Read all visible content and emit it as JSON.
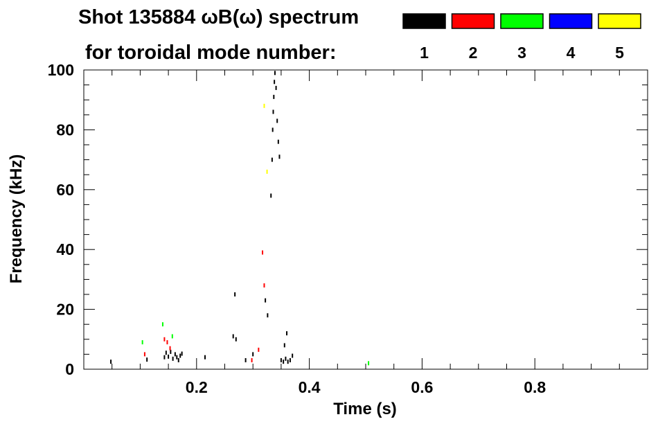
{
  "chart_data": {
    "type": "scatter",
    "title_line1": "Shot 135884 ωB(ω) spectrum",
    "title_line2": "for toroidal mode number:",
    "xlabel": "Time (s)",
    "ylabel": "Frequency (kHz)",
    "xlim": [
      0.0,
      1.0
    ],
    "ylim": [
      0,
      100
    ],
    "xticks": [
      0.2,
      0.4,
      0.6,
      0.8
    ],
    "xtick_labels": [
      "0.2",
      "0.4",
      "0.6",
      "0.8"
    ],
    "yticks": [
      0,
      20,
      40,
      60,
      80,
      100
    ],
    "ytick_labels": [
      "0",
      "20",
      "40",
      "60",
      "80",
      "100"
    ],
    "grid": false,
    "legend_placement": "top-right",
    "legend": [
      {
        "label": "1",
        "color": "#000000"
      },
      {
        "label": "2",
        "color": "#ff0000"
      },
      {
        "label": "3",
        "color": "#00ff00"
      },
      {
        "label": "4",
        "color": "#0000ff"
      },
      {
        "label": "5",
        "color": "#ffff00"
      }
    ],
    "series": [
      {
        "mode": "1",
        "color": "#000000",
        "points": [
          [
            0.048,
            2.5
          ],
          [
            0.112,
            3.2
          ],
          [
            0.143,
            4.0
          ],
          [
            0.146,
            5.5
          ],
          [
            0.15,
            4.2
          ],
          [
            0.154,
            5.8
          ],
          [
            0.158,
            3.5
          ],
          [
            0.162,
            5.0
          ],
          [
            0.165,
            4.0
          ],
          [
            0.168,
            3.0
          ],
          [
            0.171,
            4.5
          ],
          [
            0.174,
            5.2
          ],
          [
            0.215,
            4.0
          ],
          [
            0.265,
            11.0
          ],
          [
            0.268,
            25.0
          ],
          [
            0.27,
            10.0
          ],
          [
            0.287,
            3.0
          ],
          [
            0.3,
            5.0
          ],
          [
            0.322,
            23.0
          ],
          [
            0.326,
            18.0
          ],
          [
            0.332,
            58.0
          ],
          [
            0.334,
            70.0
          ],
          [
            0.335,
            80.0
          ],
          [
            0.336,
            86.0
          ],
          [
            0.337,
            91.0
          ],
          [
            0.338,
            96.0
          ],
          [
            0.339,
            99.0
          ],
          [
            0.341,
            94.0
          ],
          [
            0.343,
            83.0
          ],
          [
            0.345,
            76.0
          ],
          [
            0.347,
            71.0
          ],
          [
            0.35,
            3.0
          ],
          [
            0.354,
            2.5
          ],
          [
            0.358,
            3.5
          ],
          [
            0.362,
            2.5
          ],
          [
            0.366,
            3.0
          ],
          [
            0.37,
            4.5
          ],
          [
            0.356,
            8.0
          ],
          [
            0.36,
            12.0
          ]
        ]
      },
      {
        "mode": "2",
        "color": "#ff0000",
        "points": [
          [
            0.108,
            5.0
          ],
          [
            0.143,
            10.0
          ],
          [
            0.148,
            9.0
          ],
          [
            0.153,
            7.0
          ],
          [
            0.31,
            6.5
          ],
          [
            0.298,
            3.0
          ],
          [
            0.32,
            28.0
          ],
          [
            0.317,
            39.0
          ]
        ]
      },
      {
        "mode": "3",
        "color": "#00ff00",
        "points": [
          [
            0.104,
            9.0
          ],
          [
            0.14,
            15.0
          ],
          [
            0.157,
            11.0
          ],
          [
            0.505,
            2.0
          ]
        ]
      },
      {
        "mode": "5",
        "color": "#ffff00",
        "points": [
          [
            0.32,
            88.0
          ],
          [
            0.325,
            66.0
          ]
        ]
      }
    ]
  }
}
